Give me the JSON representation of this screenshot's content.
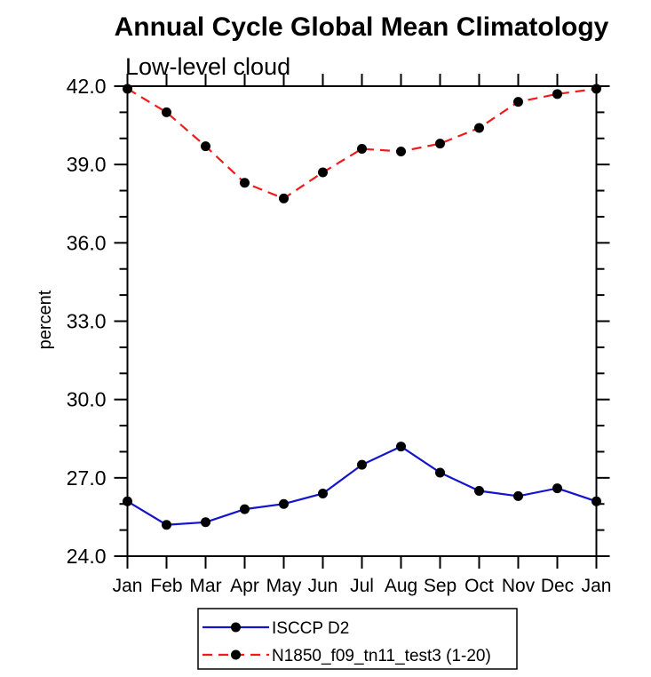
{
  "chart_data": {
    "type": "line",
    "title": "Annual Cycle Global Mean Climatology",
    "subtitle": "Low-level cloud",
    "ylabel": "percent",
    "xlabel": "",
    "categories": [
      "Jan",
      "Feb",
      "Mar",
      "Apr",
      "May",
      "Jun",
      "Jul",
      "Aug",
      "Sep",
      "Oct",
      "Nov",
      "Dec",
      "Jan"
    ],
    "ylim": [
      24.0,
      42.0
    ],
    "ytick_interval": 3.0,
    "ytick_minor_interval": 1.0,
    "ytick_labels": [
      "24.0",
      "27.0",
      "30.0",
      "33.0",
      "36.0",
      "39.0",
      "42.0"
    ],
    "grid": false,
    "legend_position": "bottom-center",
    "series": [
      {
        "name": "ISCCP D2",
        "color": "#1414cc",
        "line_style": "solid",
        "marker": "filled-circle",
        "marker_color": "#000000",
        "values": [
          26.1,
          25.2,
          25.3,
          25.8,
          26.0,
          26.4,
          27.5,
          28.2,
          27.2,
          26.5,
          26.3,
          26.6,
          26.1
        ]
      },
      {
        "name": "N1850_f09_tn11_test3 (1-20)",
        "color": "#ee1c1c",
        "line_style": "dashed",
        "marker": "filled-circle",
        "marker_color": "#000000",
        "values": [
          41.9,
          41.0,
          39.7,
          38.3,
          37.7,
          38.7,
          39.6,
          39.5,
          39.8,
          40.4,
          41.4,
          41.7,
          41.9
        ]
      }
    ]
  },
  "colors": {
    "background": "#ffffff",
    "axis": "#000000",
    "text": "#000000"
  }
}
